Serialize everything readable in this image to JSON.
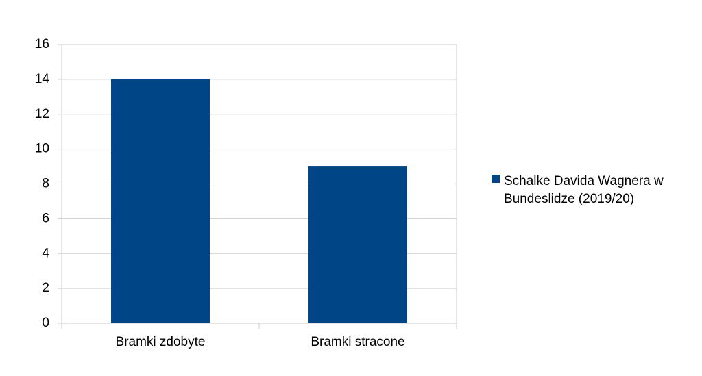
{
  "chart_data": {
    "type": "bar",
    "categories": [
      "Bramki zdobyte",
      "Bramki stracone"
    ],
    "series": [
      {
        "name": "Schalke Davida Wagnera w Bundeslidze (2019/20)",
        "color": "#004586",
        "values": [
          14,
          9
        ]
      }
    ],
    "ylim": [
      0,
      16
    ],
    "yticks": [
      0,
      2,
      4,
      6,
      8,
      10,
      12,
      14,
      16
    ],
    "grid": true,
    "legend": "right"
  }
}
